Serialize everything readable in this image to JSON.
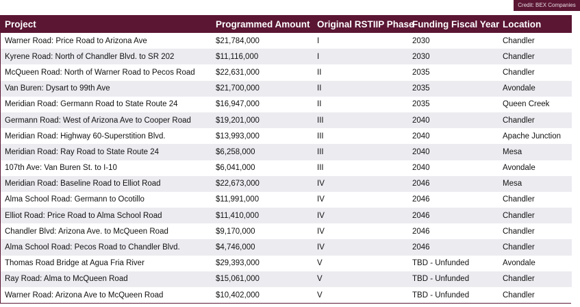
{
  "credit": "Credit: BEX Companies",
  "columns": [
    "Project",
    "Programmed Amount",
    "Original RSTIIP Phase",
    "Funding Fiscal Year",
    "Location"
  ],
  "rows": [
    {
      "project": "Warner Road: Price Road to Arizona Ave",
      "amount": "$21,784,000",
      "phase": "I",
      "year": "2030",
      "location": "Chandler"
    },
    {
      "project": "Kyrene Road: North of Chandler Blvd. to SR 202",
      "amount": "$11,116,000",
      "phase": "I",
      "year": "2030",
      "location": "Chandler"
    },
    {
      "project": "McQueen Road: North of Warner Road to Pecos Road",
      "amount": "$22,631,000",
      "phase": "II",
      "year": "2035",
      "location": "Chandler"
    },
    {
      "project": "Van Buren: Dysart to 99th Ave",
      "amount": "$21,700,000",
      "phase": "II",
      "year": "2035",
      "location": "Avondale"
    },
    {
      "project": "Meridian Road: Germann Road to State Route 24",
      "amount": "$16,947,000",
      "phase": "II",
      "year": "2035",
      "location": "Queen Creek"
    },
    {
      "project": "Germann Road: West of Arizona Ave to Cooper Road",
      "amount": "$19,201,000",
      "phase": "III",
      "year": "2040",
      "location": "Chandler"
    },
    {
      "project": "Meridian Road: Highway 60-Superstition Blvd.",
      "amount": "$13,993,000",
      "phase": "III",
      "year": "2040",
      "location": "Apache Junction"
    },
    {
      "project": "Meridian Road: Ray Road to State Route 24",
      "amount": "$6,258,000",
      "phase": "III",
      "year": "2040",
      "location": "Mesa"
    },
    {
      "project": "107th Ave: Van Buren St. to I-10",
      "amount": "$6,041,000",
      "phase": "III",
      "year": "2040",
      "location": "Avondale"
    },
    {
      "project": "Meridian Road: Baseline Road to Elliot Road",
      "amount": "$22,673,000",
      "phase": "IV",
      "year": "2046",
      "location": "Mesa"
    },
    {
      "project": "Alma School Road: Germann to Ocotillo",
      "amount": "$11,991,000",
      "phase": "IV",
      "year": "2046",
      "location": "Chandler"
    },
    {
      "project": "Elliot Road: Price Road to Alma School Road",
      "amount": "$11,410,000",
      "phase": "IV",
      "year": "2046",
      "location": "Chandler"
    },
    {
      "project": "Chandler Blvd: Arizona Ave. to McQueen Road",
      "amount": "$9,170,000",
      "phase": "IV",
      "year": "2046",
      "location": "Chandler"
    },
    {
      "project": "Alma School Road: Pecos Road to Chandler Blvd.",
      "amount": "$4,746,000",
      "phase": "IV",
      "year": "2046",
      "location": "Chandler"
    },
    {
      "project": "Thomas Road Bridge at Agua Fria River",
      "amount": "$29,393,000",
      "phase": "V",
      "year": "TBD - Unfunded",
      "location": "Avondale"
    },
    {
      "project": "Ray Road: Alma to McQueen Road",
      "amount": "$15,061,000",
      "phase": "V",
      "year": "TBD - Unfunded",
      "location": "Chandler"
    },
    {
      "project": "Warner Road: Arizona Ave to McQueen Road",
      "amount": "$10,402,000",
      "phase": "V",
      "year": "TBD - Unfunded",
      "location": "Chandler"
    }
  ],
  "colors": {
    "header_bg": "#5a1633",
    "header_text": "#ffffff",
    "stripe": "#ecebf0"
  }
}
